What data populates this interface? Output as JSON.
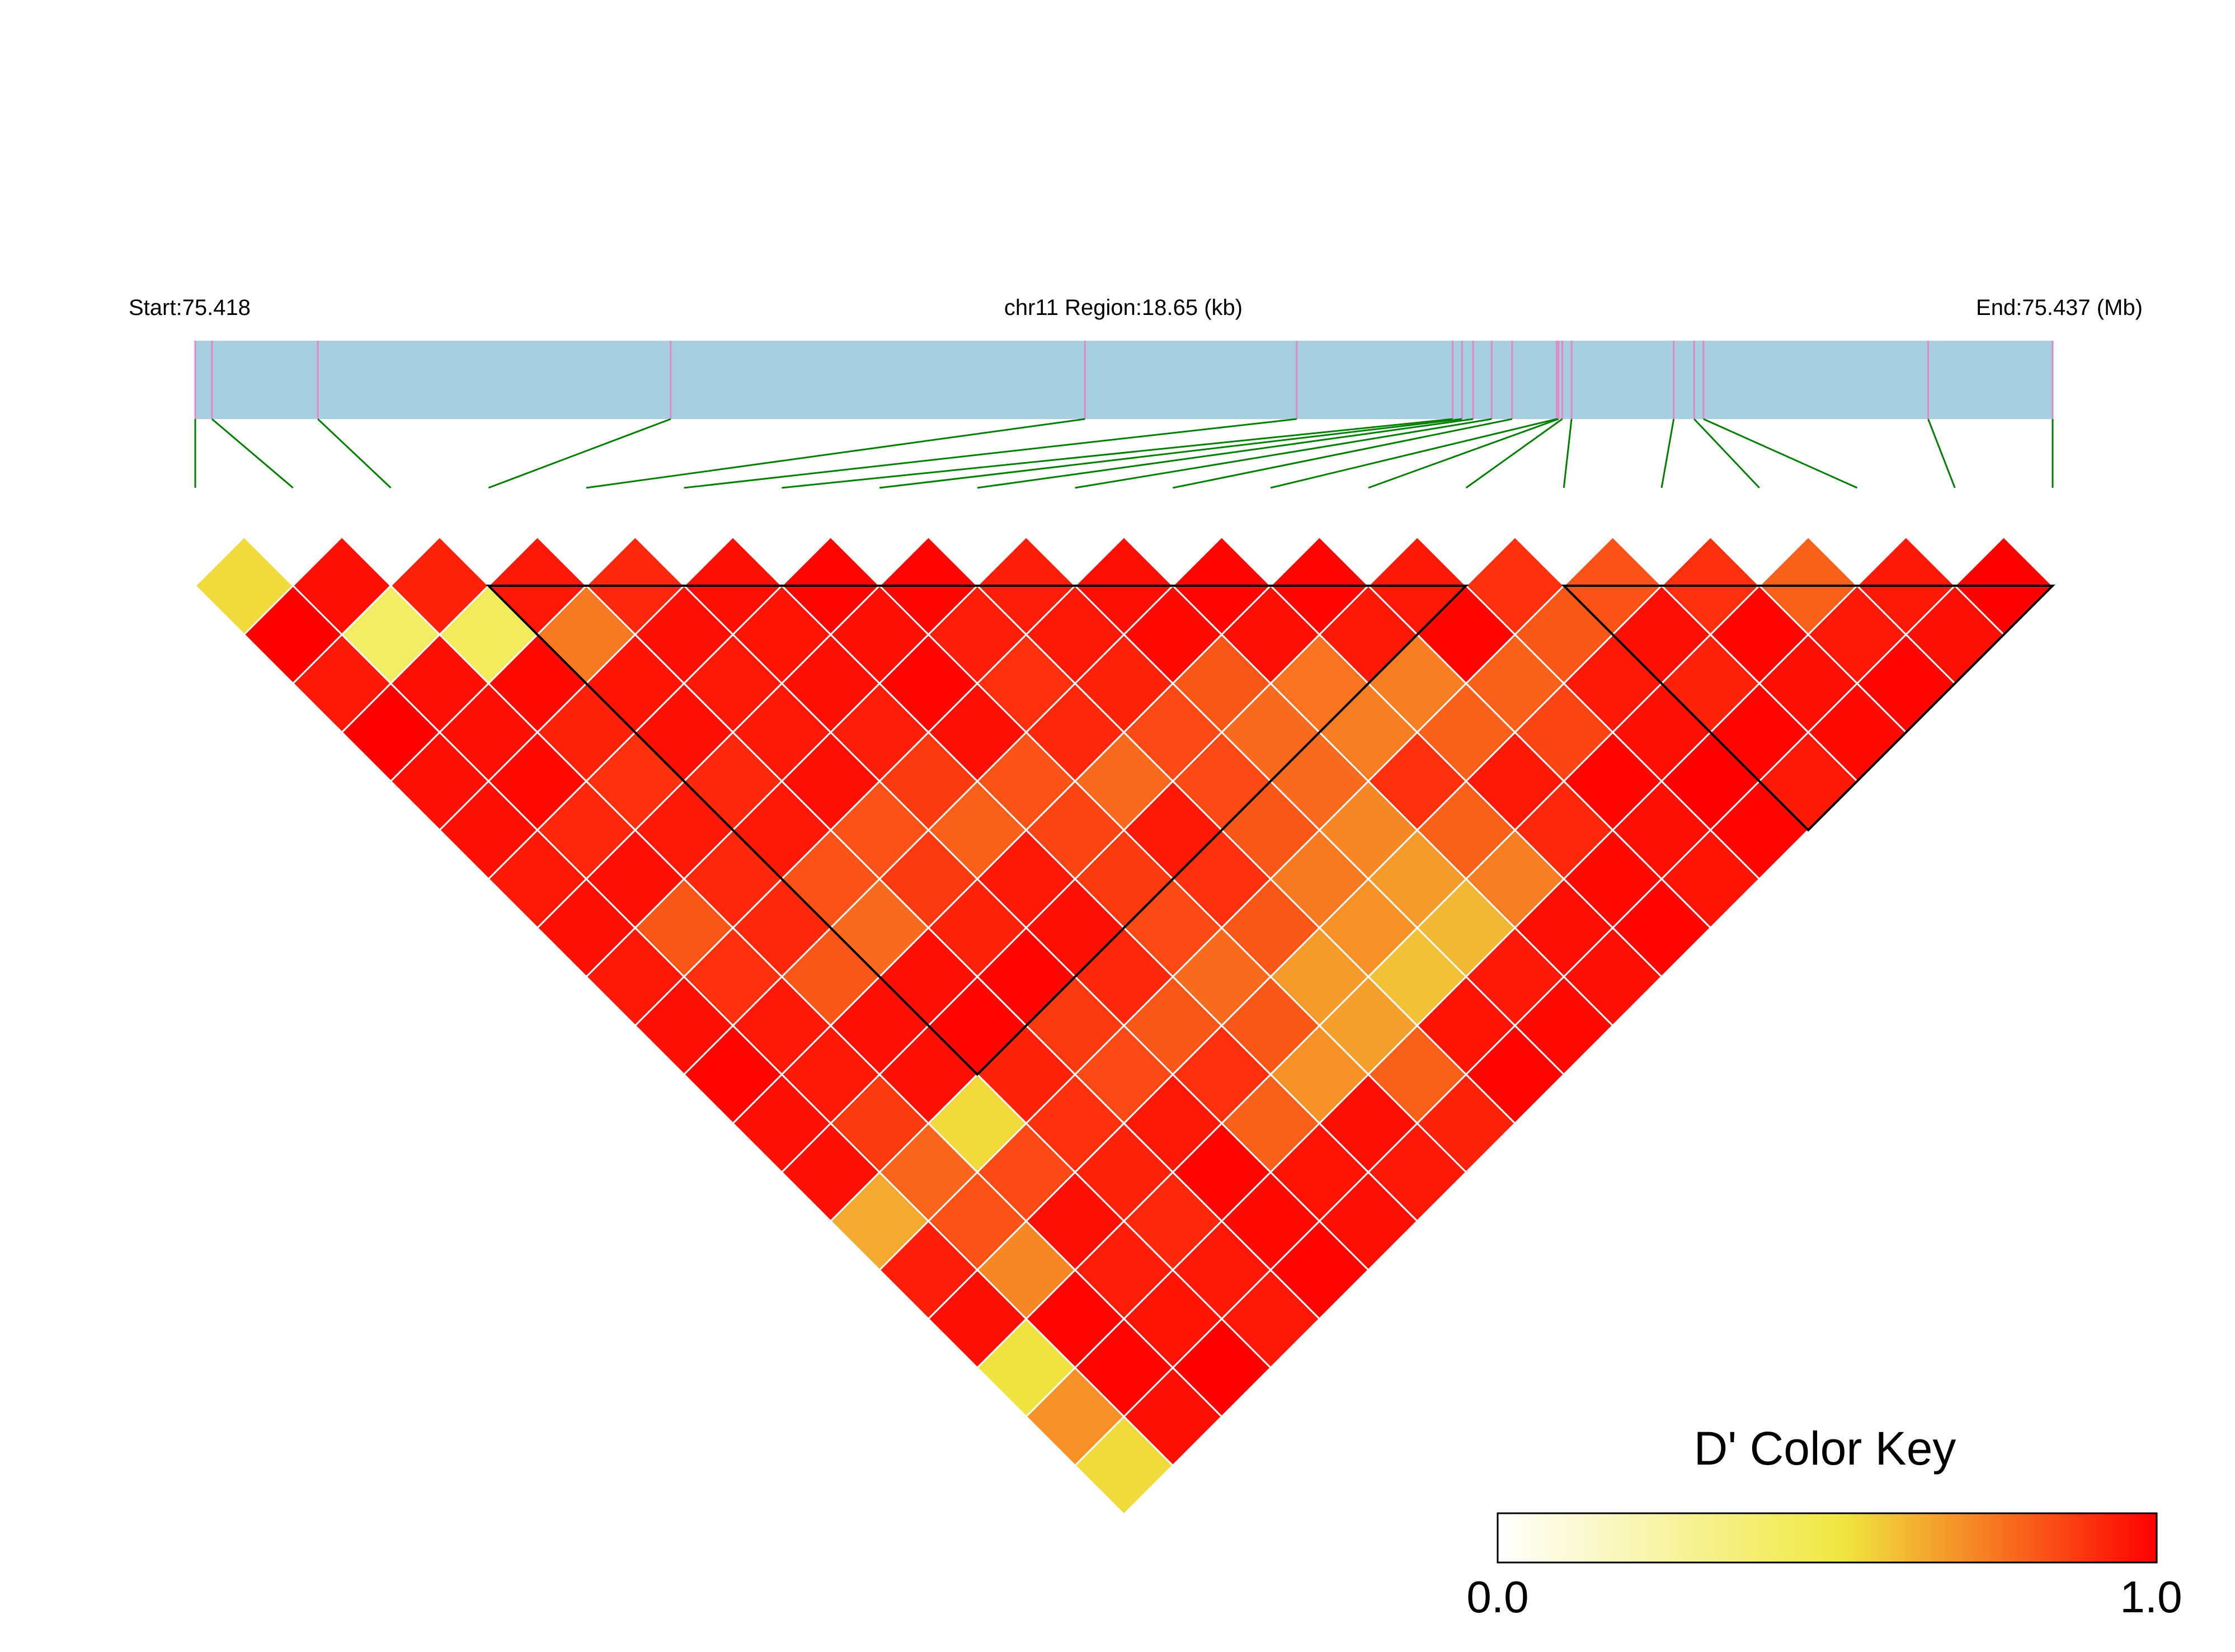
{
  "chart_data": {
    "type": "heatmap",
    "header": {
      "start_label": "Start:75.418",
      "region_label": "chr11 Region:18.65 (kb)",
      "end_label": "End:75.437 (Mb)"
    },
    "snp_count": 20,
    "snp_relative_positions": [
      0.0,
      0.009,
      0.066,
      0.256,
      0.479,
      0.593,
      0.677,
      0.682,
      0.688,
      0.698,
      0.709,
      0.733,
      0.734,
      0.736,
      0.741,
      0.796,
      0.807,
      0.812,
      0.933,
      1.0
    ],
    "d_prime_rows": [
      [
        0.55,
        0.97,
        0.93,
        0.95,
        0.92,
        0.97,
        0.99,
        0.99,
        0.94,
        0.97,
        0.99,
        0.99,
        0.95,
        0.9,
        0.83,
        0.9,
        0.8,
        0.95,
        1.0
      ],
      [
        1.0,
        0.42,
        0.44,
        0.75,
        0.97,
        0.96,
        0.97,
        0.94,
        0.95,
        0.98,
        0.97,
        0.95,
        0.99,
        0.82,
        0.97,
        0.99,
        0.95,
        0.97
      ],
      [
        0.95,
        0.97,
        0.98,
        0.96,
        0.95,
        0.97,
        0.99,
        0.9,
        0.93,
        0.82,
        0.76,
        0.74,
        0.8,
        0.95,
        0.93,
        0.97,
        0.99
      ],
      [
        1.0,
        0.97,
        0.93,
        0.97,
        0.95,
        0.94,
        0.97,
        0.92,
        0.85,
        0.78,
        0.74,
        0.8,
        0.86,
        0.97,
        0.99,
        0.98
      ],
      [
        0.97,
        0.98,
        0.9,
        0.92,
        0.97,
        0.88,
        0.83,
        0.78,
        0.85,
        0.78,
        0.9,
        0.95,
        0.99,
        1.0,
        0.95
      ],
      [
        0.97,
        0.92,
        0.95,
        0.95,
        0.83,
        0.8,
        0.86,
        0.95,
        0.82,
        0.72,
        0.8,
        0.92,
        0.97,
        0.99
      ],
      [
        0.95,
        0.97,
        0.92,
        0.83,
        0.88,
        0.95,
        0.88,
        0.9,
        0.75,
        0.68,
        0.74,
        0.98,
        0.96
      ],
      [
        0.97,
        0.82,
        0.92,
        0.78,
        0.93,
        0.97,
        0.85,
        0.82,
        0.7,
        0.62,
        0.97,
        0.99
      ],
      [
        0.95,
        0.9,
        0.82,
        0.97,
        0.99,
        0.92,
        0.78,
        0.68,
        0.6,
        0.95,
        0.97
      ],
      [
        0.97,
        0.95,
        0.97,
        0.99,
        0.88,
        0.82,
        0.82,
        0.67,
        0.96,
        0.98
      ],
      [
        0.99,
        0.95,
        0.97,
        0.93,
        0.85,
        0.9,
        0.7,
        0.8,
        0.99
      ],
      [
        0.97,
        0.88,
        0.55,
        0.9,
        0.95,
        0.8,
        0.97,
        0.93
      ],
      [
        0.97,
        0.79,
        0.85,
        0.93,
        0.99,
        0.96,
        0.95
      ],
      [
        0.65,
        0.83,
        0.97,
        0.92,
        0.98,
        0.97
      ],
      [
        0.94,
        0.72,
        0.94,
        0.95,
        0.99
      ],
      [
        0.97,
        0.99,
        0.96,
        0.95
      ],
      [
        0.53,
        0.99,
        1.0
      ],
      [
        0.7,
        0.97
      ],
      [
        0.55
      ]
    ],
    "ld_blocks": [
      [
        3,
        13
      ],
      [
        14,
        19
      ]
    ],
    "color_key": {
      "title": "D' Color Key",
      "min_label": "0.0",
      "max_label": "1.0",
      "range": [
        0,
        1
      ],
      "gradient": [
        "#ffffff",
        "#f0e840",
        "#ff0000"
      ]
    },
    "colors": {
      "region_bar": "#a8cfe1",
      "snp_marker": "#e088c8",
      "connector_line": "#008000",
      "block_outline": "#000000",
      "cell_border": "#ffffff"
    }
  }
}
